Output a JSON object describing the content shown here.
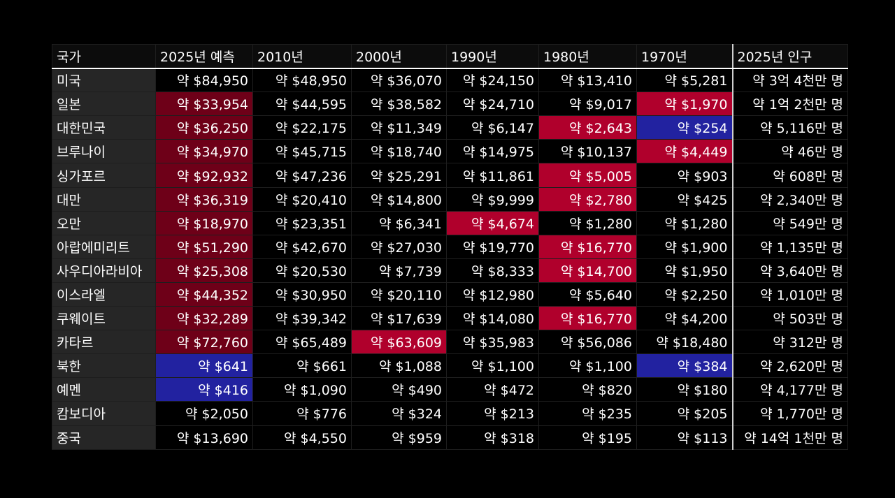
{
  "headers": [
    "국가",
    "2025년 예측",
    "2010년",
    "2000년",
    "1990년",
    "1980년",
    "1970년",
    "2025년 인구"
  ],
  "colors": {
    "highlight_country": "#e0004a",
    "highlight_2025": "#6e0018",
    "cell_red": "#b0002c",
    "cell_blue": "#2222a0"
  },
  "rows": [
    {
      "country": "미국",
      "highlight": false,
      "group_start": false,
      "values": [
        "약 $84,950",
        "약 $48,950",
        "약 $36,070",
        "약 $24,150",
        "약 $13,410",
        "약 $5,281",
        "약 3억 4천만 명"
      ],
      "marks": {}
    },
    {
      "country": "일본",
      "highlight": true,
      "group_start": true,
      "values": [
        "약 $33,954",
        "약 $44,595",
        "약 $38,582",
        "약 $24,710",
        "약 $9,017",
        "약 $1,970",
        "약 1억 2천만 명"
      ],
      "marks": {
        "5": "red"
      }
    },
    {
      "country": "대한민국",
      "highlight": true,
      "group_start": false,
      "values": [
        "약 $36,250",
        "약 $22,175",
        "약 $11,349",
        "약 $6,147",
        "약 $2,643",
        "약 $254",
        "약 5,116만 명"
      ],
      "marks": {
        "4": "red",
        "5": "blue"
      }
    },
    {
      "country": "브루나이",
      "highlight": true,
      "group_start": false,
      "values": [
        "약 $34,970",
        "약 $45,715",
        "약 $18,740",
        "약 $14,975",
        "약 $10,137",
        "약 $4,449",
        "약 46만 명"
      ],
      "marks": {
        "5": "red"
      }
    },
    {
      "country": "싱가포르",
      "highlight": true,
      "group_start": false,
      "values": [
        "약 $92,932",
        "약 $47,236",
        "약 $25,291",
        "약 $11,861",
        "약 $5,005",
        "약 $903",
        "약 608만 명"
      ],
      "marks": {
        "4": "red"
      }
    },
    {
      "country": "대만",
      "highlight": true,
      "group_start": false,
      "values": [
        "약 $36,319",
        "약 $20,410",
        "약 $14,800",
        "약 $9,999",
        "약 $2,780",
        "약 $425",
        "약 2,340만 명"
      ],
      "marks": {
        "4": "red"
      }
    },
    {
      "country": "오만",
      "highlight": true,
      "group_start": false,
      "values": [
        "약 $18,970",
        "약 $23,351",
        "약 $6,341",
        "약 $4,674",
        "약 $1,280",
        "약 $1,280",
        "약 549만 명"
      ],
      "marks": {
        "3": "red"
      }
    },
    {
      "country": "아랍에미리트",
      "highlight": true,
      "group_start": false,
      "values": [
        "약 $51,290",
        "약 $42,670",
        "약 $27,030",
        "약 $19,770",
        "약 $16,770",
        "약 $1,900",
        "약 1,135만 명"
      ],
      "marks": {
        "4": "red"
      }
    },
    {
      "country": "사우디아라비아",
      "highlight": true,
      "group_start": false,
      "values": [
        "약 $25,308",
        "약 $20,530",
        "약 $7,739",
        "약 $8,333",
        "약 $14,700",
        "약 $1,950",
        "약 3,640만 명"
      ],
      "marks": {
        "4": "red"
      }
    },
    {
      "country": "이스라엘",
      "highlight": true,
      "group_start": false,
      "values": [
        "약 $44,352",
        "약 $30,950",
        "약 $20,110",
        "약 $12,980",
        "약 $5,640",
        "약 $2,250",
        "약 1,010만 명"
      ],
      "marks": {}
    },
    {
      "country": "쿠웨이트",
      "highlight": true,
      "group_start": false,
      "values": [
        "약 $32,289",
        "약 $39,342",
        "약 $17,639",
        "약 $14,080",
        "약 $16,770",
        "약 $4,200",
        "약 503만 명"
      ],
      "marks": {
        "4": "red"
      }
    },
    {
      "country": "카타르",
      "highlight": true,
      "group_start": false,
      "values": [
        "약 $72,760",
        "약 $65,489",
        "약 $63,609",
        "약 $35,983",
        "약 $56,086",
        "약 $18,480",
        "약 312만 명"
      ],
      "marks": {
        "2": "red"
      }
    },
    {
      "country": "북한",
      "highlight": false,
      "group_start": true,
      "values": [
        "약 $641",
        "약 $661",
        "약 $1,088",
        "약 $1,100",
        "약 $1,100",
        "약 $384",
        "약 2,620만 명"
      ],
      "marks": {
        "0": "blue",
        "5": "blue"
      }
    },
    {
      "country": "예멘",
      "highlight": false,
      "group_start": false,
      "values": [
        "약 $416",
        "약 $1,090",
        "약 $490",
        "약 $472",
        "약 $820",
        "약 $180",
        "약 4,177만 명"
      ],
      "marks": {
        "0": "blue"
      }
    },
    {
      "country": "캄보디아",
      "highlight": false,
      "group_start": false,
      "values": [
        "약 $2,050",
        "약 $776",
        "약 $324",
        "약 $213",
        "약 $235",
        "약 $205",
        "약 1,770만 명"
      ],
      "marks": {}
    },
    {
      "country": "중국",
      "highlight": false,
      "group_start": false,
      "values": [
        "약 $13,690",
        "약 $4,550",
        "약 $959",
        "약 $318",
        "약 $195",
        "약 $113",
        "약 14억 1천만 명"
      ],
      "marks": {}
    }
  ]
}
